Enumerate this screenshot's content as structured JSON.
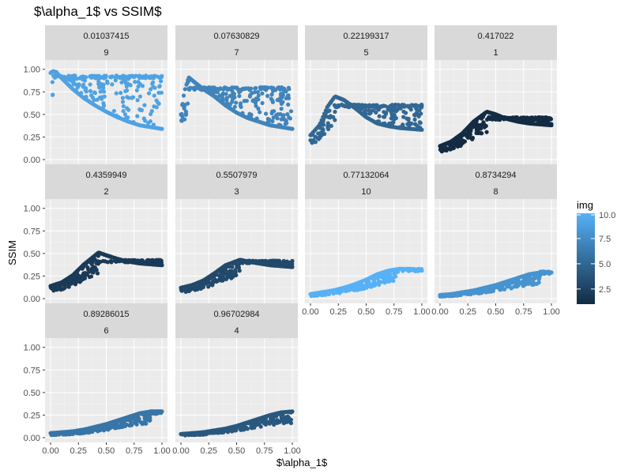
{
  "chart_data": {
    "type": "scatter",
    "title": "$\\alpha_1$ vs SSIM$",
    "xlabel": "$\\alpha_1$",
    "ylabel": "SSIM",
    "xlim": [
      0,
      1
    ],
    "ylim": [
      0,
      1
    ],
    "x_ticks": [
      "0.00",
      "0.25",
      "0.50",
      "0.75",
      "1.00"
    ],
    "y_ticks": [
      "0.00",
      "0.25",
      "0.50",
      "0.75",
      "1.00"
    ],
    "grid": true,
    "color_scale": {
      "title": "img",
      "min": 1,
      "max": 10,
      "low_color": "#132B43",
      "high_color": "#56B1F7",
      "ticks": [
        "10.0",
        "7.5",
        "5.0",
        "2.5"
      ],
      "tick_values": [
        10,
        7.5,
        5,
        2.5
      ]
    },
    "legend_position": "right",
    "panels": [
      {
        "strip_top": "0.01037415",
        "strip_bottom": "9",
        "img": 9,
        "series": [
          [
            0.0,
            0.96
          ],
          [
            0.02,
            0.98
          ],
          [
            0.05,
            0.97
          ],
          [
            0.1,
            0.9
          ],
          [
            0.2,
            0.78
          ],
          [
            0.3,
            0.68
          ],
          [
            0.4,
            0.6
          ],
          [
            0.5,
            0.53
          ],
          [
            0.6,
            0.47
          ],
          [
            0.7,
            0.42
          ],
          [
            0.8,
            0.38
          ],
          [
            0.9,
            0.36
          ],
          [
            1.0,
            0.34
          ]
        ],
        "upper": 0.93
      },
      {
        "strip_top": "0.07630829",
        "strip_bottom": "7",
        "img": 7,
        "series": [
          [
            0.0,
            0.5
          ],
          [
            0.03,
            0.75
          ],
          [
            0.07,
            0.91
          ],
          [
            0.12,
            0.86
          ],
          [
            0.2,
            0.78
          ],
          [
            0.3,
            0.7
          ],
          [
            0.4,
            0.6
          ],
          [
            0.5,
            0.52
          ],
          [
            0.6,
            0.46
          ],
          [
            0.7,
            0.42
          ],
          [
            0.8,
            0.38
          ],
          [
            0.9,
            0.36
          ],
          [
            1.0,
            0.34
          ]
        ],
        "upper": 0.8
      },
      {
        "strip_top": "0.22199317",
        "strip_bottom": "5",
        "img": 5,
        "series": [
          [
            0.0,
            0.27
          ],
          [
            0.08,
            0.38
          ],
          [
            0.15,
            0.58
          ],
          [
            0.22,
            0.7
          ],
          [
            0.3,
            0.66
          ],
          [
            0.4,
            0.57
          ],
          [
            0.5,
            0.47
          ],
          [
            0.6,
            0.4
          ],
          [
            0.7,
            0.37
          ],
          [
            0.8,
            0.35
          ],
          [
            0.9,
            0.34
          ],
          [
            1.0,
            0.33
          ]
        ],
        "upper": 0.61
      },
      {
        "strip_top": "0.417022",
        "strip_bottom": "1",
        "img": 1,
        "series": [
          [
            0.0,
            0.15
          ],
          [
            0.1,
            0.2
          ],
          [
            0.2,
            0.29
          ],
          [
            0.3,
            0.42
          ],
          [
            0.42,
            0.53
          ],
          [
            0.5,
            0.5
          ],
          [
            0.6,
            0.45
          ],
          [
            0.7,
            0.42
          ],
          [
            0.8,
            0.4
          ],
          [
            0.9,
            0.39
          ],
          [
            1.0,
            0.38
          ]
        ],
        "upper": 0.47
      },
      {
        "strip_top": "0.4359949",
        "strip_bottom": "2",
        "img": 2,
        "series": [
          [
            0.0,
            0.14
          ],
          [
            0.1,
            0.18
          ],
          [
            0.2,
            0.26
          ],
          [
            0.3,
            0.38
          ],
          [
            0.43,
            0.51
          ],
          [
            0.5,
            0.48
          ],
          [
            0.6,
            0.44
          ],
          [
            0.7,
            0.41
          ],
          [
            0.8,
            0.39
          ],
          [
            0.9,
            0.38
          ],
          [
            1.0,
            0.37
          ]
        ],
        "upper": 0.43
      },
      {
        "strip_top": "0.5507979",
        "strip_bottom": "3",
        "img": 3,
        "series": [
          [
            0.0,
            0.12
          ],
          [
            0.1,
            0.15
          ],
          [
            0.2,
            0.2
          ],
          [
            0.3,
            0.28
          ],
          [
            0.4,
            0.37
          ],
          [
            0.53,
            0.43
          ],
          [
            0.6,
            0.41
          ],
          [
            0.7,
            0.39
          ],
          [
            0.8,
            0.37
          ],
          [
            0.9,
            0.36
          ],
          [
            1.0,
            0.35
          ]
        ],
        "upper": 0.42
      },
      {
        "strip_top": "0.77132064",
        "strip_bottom": "10",
        "img": 10,
        "series": [
          [
            0.0,
            0.05
          ],
          [
            0.1,
            0.07
          ],
          [
            0.2,
            0.09
          ],
          [
            0.3,
            0.12
          ],
          [
            0.4,
            0.16
          ],
          [
            0.5,
            0.21
          ],
          [
            0.6,
            0.27
          ],
          [
            0.7,
            0.31
          ],
          [
            0.8,
            0.33
          ],
          [
            0.9,
            0.32
          ],
          [
            1.0,
            0.31
          ]
        ],
        "upper": 0.33
      },
      {
        "strip_top": "0.8734294",
        "strip_bottom": "8",
        "img": 8,
        "series": [
          [
            0.0,
            0.04
          ],
          [
            0.1,
            0.05
          ],
          [
            0.2,
            0.07
          ],
          [
            0.3,
            0.09
          ],
          [
            0.4,
            0.12
          ],
          [
            0.5,
            0.15
          ],
          [
            0.6,
            0.19
          ],
          [
            0.7,
            0.23
          ],
          [
            0.8,
            0.27
          ],
          [
            0.9,
            0.29
          ],
          [
            1.0,
            0.29
          ]
        ],
        "upper": 0.3
      },
      {
        "strip_top": "0.89286015",
        "strip_bottom": "6",
        "img": 6,
        "series": [
          [
            0.0,
            0.05
          ],
          [
            0.1,
            0.06
          ],
          [
            0.2,
            0.07
          ],
          [
            0.3,
            0.09
          ],
          [
            0.4,
            0.12
          ],
          [
            0.5,
            0.15
          ],
          [
            0.6,
            0.19
          ],
          [
            0.7,
            0.23
          ],
          [
            0.8,
            0.27
          ],
          [
            0.9,
            0.29
          ],
          [
            1.0,
            0.29
          ]
        ],
        "upper": 0.29
      },
      {
        "strip_top": "0.96702984",
        "strip_bottom": "4",
        "img": 4,
        "series": [
          [
            0.0,
            0.04
          ],
          [
            0.1,
            0.05
          ],
          [
            0.2,
            0.06
          ],
          [
            0.3,
            0.08
          ],
          [
            0.4,
            0.1
          ],
          [
            0.5,
            0.13
          ],
          [
            0.6,
            0.17
          ],
          [
            0.7,
            0.21
          ],
          [
            0.8,
            0.25
          ],
          [
            0.9,
            0.28
          ],
          [
            1.0,
            0.29
          ]
        ],
        "upper": 0.29
      }
    ]
  }
}
